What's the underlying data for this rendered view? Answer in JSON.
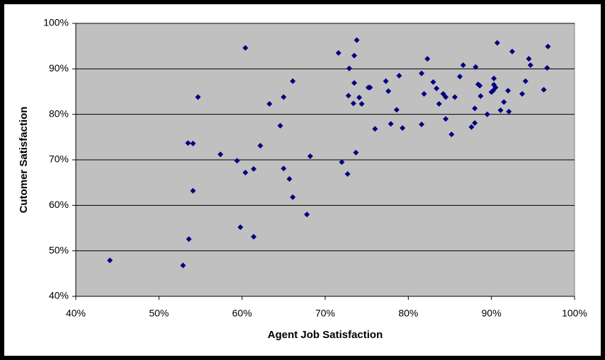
{
  "chart_data": {
    "type": "scatter",
    "x_label": "Agent Job Satisfaction",
    "y_label": "Cutomer Satisfaction",
    "color": "#000080",
    "grid": true,
    "x": [
      44.1,
      52.9,
      53.6,
      53.5,
      54.1,
      54.1,
      54.7,
      57.4,
      59.4,
      60.4,
      59.8,
      60.4,
      61.4,
      61.4,
      62.2,
      63.3,
      64.6,
      65.0,
      65.0,
      65.7,
      66.1,
      66.1,
      67.8,
      68.2,
      71.6,
      72.0,
      72.7,
      72.9,
      72.8,
      73.5,
      73.5,
      73.4,
      73.7,
      73.8,
      74.1,
      74.4,
      75.2,
      75.4,
      76.0,
      77.3,
      77.6,
      77.9,
      78.6,
      78.9,
      79.3,
      81.6,
      81.6,
      81.9,
      82.3,
      83.0,
      83.4,
      83.7,
      84.2,
      84.5,
      84.5,
      85.2,
      85.6,
      86.2,
      86.6,
      87.6,
      88.0,
      88.0,
      88.1,
      88.4,
      88.6,
      88.7,
      89.5,
      90.0,
      90.2,
      90.3,
      90.3,
      90.5,
      90.7,
      91.1,
      91.5,
      92.0,
      92.1,
      92.5,
      93.7,
      94.1,
      94.5,
      94.7,
      96.3,
      96.7,
      96.8
    ],
    "values": [
      47.9,
      46.8,
      52.6,
      73.7,
      73.6,
      63.2,
      83.8,
      71.2,
      69.8,
      94.6,
      55.2,
      67.2,
      68.0,
      53.1,
      73.1,
      82.3,
      77.5,
      83.8,
      68.1,
      65.8,
      87.3,
      61.8,
      58.0,
      70.8,
      93.5,
      69.5,
      66.9,
      90.1,
      84.1,
      92.9,
      86.9,
      82.4,
      71.6,
      96.3,
      83.7,
      82.3,
      85.9,
      85.9,
      76.8,
      87.3,
      85.1,
      77.9,
      81.0,
      88.5,
      77.0,
      89.0,
      77.8,
      84.5,
      92.2,
      87.1,
      85.7,
      82.3,
      84.5,
      83.8,
      79.0,
      75.6,
      83.8,
      88.3,
      90.8,
      77.2,
      81.3,
      78.1,
      90.4,
      86.6,
      86.3,
      84.0,
      80.0,
      84.9,
      85.2,
      87.9,
      86.5,
      85.9,
      95.7,
      80.9,
      82.7,
      85.2,
      80.6,
      93.8,
      84.5,
      87.3,
      92.2,
      90.8,
      85.4,
      90.2,
      94.9
    ],
    "xlim": [
      40,
      100
    ],
    "ylim": [
      40,
      100
    ],
    "xticks": [
      {
        "value": 40,
        "label": "40%"
      },
      {
        "value": 50,
        "label": "50%"
      },
      {
        "value": 60,
        "label": "60%"
      },
      {
        "value": 70,
        "label": "70%"
      },
      {
        "value": 80,
        "label": "80%"
      },
      {
        "value": 90,
        "label": "90%"
      },
      {
        "value": 100,
        "label": "100%"
      }
    ],
    "yticks": [
      {
        "value": 40,
        "label": "40%"
      },
      {
        "value": 50,
        "label": "50%"
      },
      {
        "value": 60,
        "label": "60%"
      },
      {
        "value": 70,
        "label": "70%"
      },
      {
        "value": 80,
        "label": "80%"
      },
      {
        "value": 90,
        "label": "90%"
      },
      {
        "value": 100,
        "label": "100%"
      }
    ]
  }
}
